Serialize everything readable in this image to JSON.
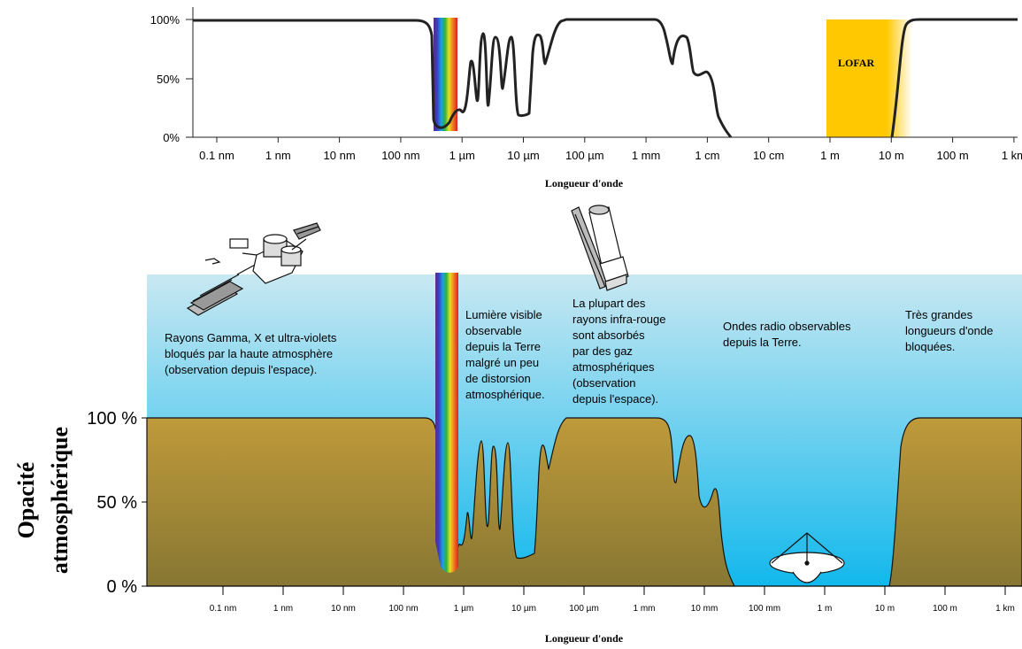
{
  "top_chart": {
    "y_ticks": [
      "100%",
      "50%",
      "0%"
    ],
    "x_ticks": [
      "0.1 nm",
      "1 nm",
      "10 nm",
      "100 nm",
      "1 µm",
      "10 µm",
      "100 µm",
      "1 mm",
      "1 cm",
      "10 cm",
      "1 m",
      "10 m",
      "100 m",
      "1 km"
    ],
    "xlabel": "Longueur d'onde",
    "lofar_label": "LOFAR"
  },
  "bottom_chart": {
    "ylabel_line1": "Opacité",
    "ylabel_line2": "atmosphérique",
    "y_ticks": [
      "100 %",
      "50 %",
      "0 %"
    ],
    "x_ticks": [
      "0.1 nm",
      "1 nm",
      "10 nm",
      "100 nm",
      "1 µm",
      "10 µm",
      "100 µm",
      "1 mm",
      "10 mm",
      "100 mm",
      "1 m",
      "10 m",
      "100 m",
      "1 km"
    ],
    "xlabel": "Longueur d'onde",
    "notes": {
      "gamma": [
        "Rayons Gamma, X et ultra-violets",
        "bloqués par la haute atmosphère",
        "(observation depuis l'espace)."
      ],
      "visible": [
        "Lumière visible",
        "observable",
        "depuis la Terre",
        "malgré un peu",
        "de distorsion",
        "atmosphérique."
      ],
      "infrared": [
        "La plupart des",
        "rayons infra-rouge",
        "sont absorbés",
        "par des gaz",
        "atmosphériques",
        "(observation",
        "depuis l'espace)."
      ],
      "radio": [
        "Ondes radio observables",
        "depuis la Terre."
      ],
      "long": [
        "Très grandes",
        "longueurs d'onde",
        "bloquées."
      ]
    }
  },
  "chart_data": [
    {
      "type": "line",
      "ylim": [
        0,
        100
      ],
      "x_unit": "decade index (0 = 0.1 nm ... 13 = 1 km)",
      "x": [
        0,
        3.4,
        3.7,
        3.85,
        4.05,
        4.2,
        4.4,
        4.6,
        4.8,
        5.0,
        5.3,
        5.6,
        5.9,
        6.2,
        6.8,
        7.3,
        7.7,
        8.0,
        8.3,
        8.6,
        9.0,
        11.75,
        12.0,
        13.5
      ],
      "y": [
        100,
        100,
        95,
        10,
        25,
        85,
        20,
        90,
        30,
        85,
        15,
        90,
        40,
        100,
        100,
        98,
        55,
        95,
        50,
        65,
        0,
        0,
        100,
        100
      ]
    },
    {
      "type": "area",
      "ylim": [
        0,
        100
      ],
      "x": [
        0,
        3.4,
        3.7,
        3.85,
        4.05,
        4.2,
        4.4,
        4.6,
        4.8,
        5.0,
        5.3,
        5.6,
        5.9,
        6.2,
        6.8,
        7.3,
        7.7,
        8.0,
        8.3,
        8.6,
        9.0,
        11.75,
        12.0,
        13.5
      ],
      "y": [
        100,
        100,
        95,
        10,
        25,
        85,
        20,
        90,
        30,
        85,
        15,
        90,
        40,
        100,
        100,
        98,
        55,
        95,
        50,
        65,
        0,
        0,
        100,
        100
      ]
    }
  ],
  "colors": {
    "sky_top": "#c8e8f2",
    "sky_bottom": "#12b8ec",
    "ground_top": "#bf9a3a",
    "ground_bottom": "#8a7a32",
    "lofar": "#ffc800"
  },
  "icons": [
    "satellite-icon",
    "space-telescope-icon",
    "radio-dish-icon"
  ]
}
